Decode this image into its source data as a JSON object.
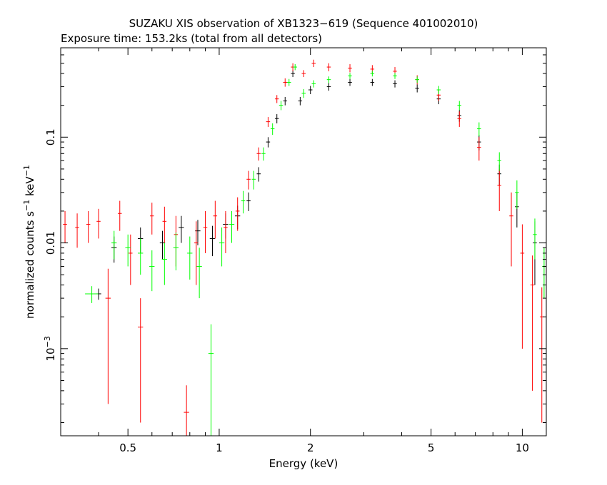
{
  "chart_data": {
    "type": "scatter",
    "title": "SUZAKU XIS observation of XB1323−619 (Sequence 401002010)",
    "subtitle": "Exposure time: 153.2ks (total from all detectors)",
    "xlabel": "Energy (keV)",
    "ylabel": "normalized counts s",
    "ylabel_exp1": "−1",
    "ylabel_mid": " keV",
    "ylabel_exp2": "−1",
    "xscale": "log",
    "yscale": "log",
    "xlim": [
      0.3,
      12
    ],
    "ylim": [
      0.00015,
      0.7
    ],
    "grid": false,
    "x_ticks": [
      {
        "value": 0.5,
        "label": "0.5"
      },
      {
        "value": 1,
        "label": "1"
      },
      {
        "value": 2,
        "label": "2"
      },
      {
        "value": 5,
        "label": "5"
      },
      {
        "value": 10,
        "label": "10"
      }
    ],
    "y_ticks": [
      {
        "value": 0.001,
        "base": "10",
        "exp": "−3"
      },
      {
        "value": 0.01,
        "label": "0.01"
      },
      {
        "value": 0.1,
        "label": "0.1"
      }
    ],
    "series": [
      {
        "color": "#000000",
        "points": [
          [
            0.4,
            0.0033,
            0.02,
            0.0004
          ],
          [
            0.45,
            0.009,
            0.02,
            0.0025
          ],
          [
            0.55,
            0.011,
            0.02,
            0.003
          ],
          [
            0.65,
            0.01,
            0.02,
            0.003
          ],
          [
            0.75,
            0.014,
            0.02,
            0.004
          ],
          [
            0.85,
            0.013,
            0.02,
            0.0035
          ],
          [
            0.95,
            0.011,
            0.02,
            0.0035
          ],
          [
            1.05,
            0.015,
            0.02,
            0.004
          ],
          [
            1.15,
            0.018,
            0.02,
            0.0045
          ],
          [
            1.25,
            0.025,
            0.015,
            0.005
          ],
          [
            1.35,
            0.045,
            0.015,
            0.007
          ],
          [
            1.45,
            0.09,
            0.015,
            0.01
          ],
          [
            1.55,
            0.15,
            0.015,
            0.015
          ],
          [
            1.65,
            0.22,
            0.015,
            0.02
          ],
          [
            1.75,
            0.4,
            0.015,
            0.03
          ],
          [
            1.85,
            0.22,
            0.015,
            0.02
          ],
          [
            2.0,
            0.28,
            0.015,
            0.025
          ],
          [
            2.3,
            0.3,
            0.015,
            0.025
          ],
          [
            2.7,
            0.33,
            0.015,
            0.025
          ],
          [
            3.2,
            0.33,
            0.015,
            0.025
          ],
          [
            3.8,
            0.32,
            0.015,
            0.025
          ],
          [
            4.5,
            0.29,
            0.015,
            0.025
          ],
          [
            5.3,
            0.23,
            0.015,
            0.025
          ],
          [
            6.2,
            0.16,
            0.015,
            0.02
          ],
          [
            7.2,
            0.09,
            0.015,
            0.015
          ],
          [
            8.4,
            0.045,
            0.015,
            0.01
          ],
          [
            9.6,
            0.022,
            0.015,
            0.008
          ],
          [
            11.0,
            0.01,
            0.015,
            0.006
          ]
        ]
      },
      {
        "color": "#ff0000",
        "points": [
          [
            0.31,
            0.015,
            0.015,
            0.005
          ],
          [
            0.34,
            0.014,
            0.015,
            0.005
          ],
          [
            0.37,
            0.015,
            0.015,
            0.005
          ],
          [
            0.4,
            0.016,
            0.015,
            0.005
          ],
          [
            0.43,
            0.003,
            0.02,
            0.0027
          ],
          [
            0.47,
            0.019,
            0.015,
            0.006
          ],
          [
            0.51,
            0.008,
            0.015,
            0.004
          ],
          [
            0.55,
            0.0016,
            0.02,
            0.0014
          ],
          [
            0.6,
            0.018,
            0.015,
            0.006
          ],
          [
            0.66,
            0.016,
            0.015,
            0.006
          ],
          [
            0.72,
            0.012,
            0.015,
            0.006
          ],
          [
            0.78,
            0.00025,
            0.02,
            0.0002
          ],
          [
            0.84,
            0.01,
            0.015,
            0.006
          ],
          [
            0.9,
            0.014,
            0.015,
            0.006
          ],
          [
            0.97,
            0.018,
            0.015,
            0.007
          ],
          [
            1.05,
            0.014,
            0.015,
            0.006
          ],
          [
            1.15,
            0.02,
            0.015,
            0.007
          ],
          [
            1.25,
            0.04,
            0.015,
            0.008
          ],
          [
            1.35,
            0.07,
            0.015,
            0.01
          ],
          [
            1.45,
            0.14,
            0.015,
            0.015
          ],
          [
            1.55,
            0.23,
            0.015,
            0.02
          ],
          [
            1.65,
            0.33,
            0.015,
            0.03
          ],
          [
            1.75,
            0.46,
            0.015,
            0.04
          ],
          [
            1.9,
            0.4,
            0.015,
            0.03
          ],
          [
            2.05,
            0.5,
            0.015,
            0.04
          ],
          [
            2.3,
            0.46,
            0.015,
            0.04
          ],
          [
            2.7,
            0.45,
            0.015,
            0.04
          ],
          [
            3.2,
            0.44,
            0.015,
            0.04
          ],
          [
            3.8,
            0.42,
            0.015,
            0.04
          ],
          [
            4.5,
            0.35,
            0.015,
            0.035
          ],
          [
            5.3,
            0.25,
            0.015,
            0.03
          ],
          [
            6.2,
            0.15,
            0.015,
            0.025
          ],
          [
            7.2,
            0.08,
            0.015,
            0.02
          ],
          [
            8.4,
            0.035,
            0.015,
            0.015
          ],
          [
            9.2,
            0.018,
            0.015,
            0.012
          ],
          [
            10.0,
            0.008,
            0.015,
            0.007
          ],
          [
            10.8,
            0.004,
            0.015,
            0.0036
          ],
          [
            11.6,
            0.002,
            0.015,
            0.0018
          ]
        ]
      },
      {
        "color": "#00ff00",
        "points": [
          [
            0.38,
            0.0033,
            0.05,
            0.0006
          ],
          [
            0.45,
            0.01,
            0.02,
            0.003
          ],
          [
            0.5,
            0.009,
            0.02,
            0.003
          ],
          [
            0.55,
            0.008,
            0.02,
            0.003
          ],
          [
            0.6,
            0.006,
            0.02,
            0.0025
          ],
          [
            0.66,
            0.007,
            0.02,
            0.003
          ],
          [
            0.72,
            0.009,
            0.02,
            0.0035
          ],
          [
            0.8,
            0.008,
            0.02,
            0.0035
          ],
          [
            0.86,
            0.006,
            0.02,
            0.003
          ],
          [
            0.94,
            0.0009,
            0.02,
            0.0008
          ],
          [
            1.02,
            0.01,
            0.02,
            0.004
          ],
          [
            1.1,
            0.015,
            0.02,
            0.005
          ],
          [
            1.2,
            0.025,
            0.015,
            0.006
          ],
          [
            1.3,
            0.04,
            0.015,
            0.008
          ],
          [
            1.4,
            0.07,
            0.015,
            0.01
          ],
          [
            1.5,
            0.12,
            0.015,
            0.015
          ],
          [
            1.6,
            0.2,
            0.015,
            0.02
          ],
          [
            1.7,
            0.33,
            0.015,
            0.025
          ],
          [
            1.78,
            0.46,
            0.015,
            0.03
          ],
          [
            1.9,
            0.26,
            0.015,
            0.025
          ],
          [
            2.05,
            0.32,
            0.015,
            0.025
          ],
          [
            2.3,
            0.35,
            0.015,
            0.025
          ],
          [
            2.7,
            0.38,
            0.015,
            0.025
          ],
          [
            3.2,
            0.4,
            0.015,
            0.025
          ],
          [
            3.8,
            0.38,
            0.015,
            0.025
          ],
          [
            4.5,
            0.35,
            0.015,
            0.025
          ],
          [
            5.3,
            0.28,
            0.015,
            0.025
          ],
          [
            6.2,
            0.2,
            0.015,
            0.02
          ],
          [
            7.2,
            0.12,
            0.015,
            0.018
          ],
          [
            8.4,
            0.06,
            0.015,
            0.012
          ],
          [
            9.6,
            0.03,
            0.015,
            0.009
          ],
          [
            11.0,
            0.012,
            0.015,
            0.005
          ],
          [
            11.8,
            0.006,
            0.015,
            0.003
          ]
        ]
      }
    ]
  }
}
